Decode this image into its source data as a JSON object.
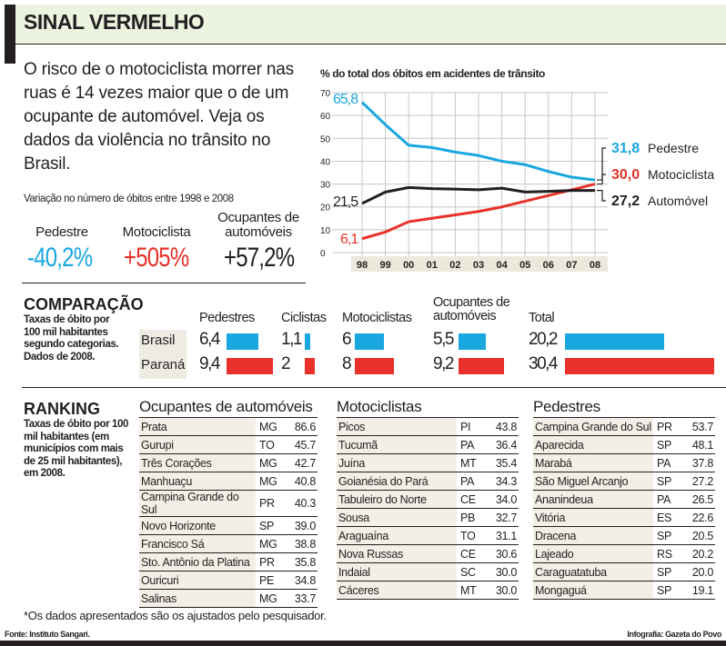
{
  "title": "SINAL VERMELHO",
  "lead": "O risco de o motociclista morrer nas ruas é 14 vezes maior que o de um ocupante de automóvel. Veja os dados da violência no trânsito no Brasil.",
  "variation": {
    "label": "Variação no número de óbitos entre 1998 e 2008",
    "items": [
      {
        "category": "Pedestre",
        "value": "-40,2%",
        "color": "#1aa7e0"
      },
      {
        "category": "Motociclista",
        "value": "+505%",
        "color": "#e8312a"
      },
      {
        "category": "Ocupantes de automóveis",
        "value": "+57,2%",
        "color": "#231f20"
      }
    ]
  },
  "chart_data": {
    "type": "line",
    "title": "% do total dos óbitos em acidentes de trânsito",
    "categories": [
      "98",
      "99",
      "00",
      "01",
      "02",
      "03",
      "04",
      "05",
      "06",
      "07",
      "08"
    ],
    "ylim": [
      0,
      70
    ],
    "yticks": [
      0,
      10,
      20,
      30,
      40,
      50,
      60,
      70
    ],
    "grid": true,
    "series": [
      {
        "name": "Pedestre",
        "color": "#1aa7e0",
        "start_label": "65,8",
        "end_label": "31,8",
        "values": [
          65.8,
          56,
          47,
          46,
          44,
          42.5,
          40,
          38.5,
          35.5,
          33,
          31.8
        ]
      },
      {
        "name": "Motociclista",
        "color": "#e8312a",
        "start_label": "6,1",
        "end_label": "30,0",
        "values": [
          6.1,
          9,
          13.5,
          15,
          16.5,
          18,
          20,
          22.5,
          25,
          27.5,
          30.0
        ]
      },
      {
        "name": "Automóvel",
        "color": "#231f20",
        "start_label": "21,5",
        "end_label": "27,2",
        "values": [
          21.5,
          26.5,
          28.5,
          28,
          27.8,
          27.5,
          28.2,
          26.5,
          26.8,
          27.2,
          27.2
        ]
      }
    ]
  },
  "comparison": {
    "title": "COMPARAÇÃO",
    "description": "Taxas de óbito por 100 mil habitantes segundo categorias. Dados de 2008.",
    "columns": [
      "Pedestres",
      "Ciclistas",
      "Motociclistas",
      "Ocupantes de automóveis",
      "Total"
    ],
    "rows": [
      {
        "label": "Brasil",
        "color": "#1aa7e0",
        "values": [
          6.4,
          1.1,
          6,
          5.5,
          20.2
        ],
        "labels": [
          "6,4",
          "1,1",
          "6",
          "5,5",
          "20,2"
        ]
      },
      {
        "label": "Paraná",
        "color": "#e8312a",
        "values": [
          9.4,
          2,
          8,
          9.2,
          30.4
        ],
        "labels": [
          "9,4",
          "2",
          "8",
          "9,2",
          "30,4"
        ]
      }
    ]
  },
  "ranking": {
    "title": "RANKING",
    "description": "Taxas de óbito por 100 mil habitantes (em municípios com mais de 25 mil habitantes), em 2008.",
    "tables": [
      {
        "title": "Ocupantes de automóveis",
        "rows": [
          [
            "Prata",
            "MG",
            "86.6"
          ],
          [
            "Gurupi",
            "TO",
            "45.7"
          ],
          [
            "Três Corações",
            "MG",
            "42.7"
          ],
          [
            "Manhuaçu",
            "MG",
            "40.8"
          ],
          [
            "Campina Grande do Sul",
            "PR",
            "40.3"
          ],
          [
            "Novo Horizonte",
            "SP",
            "39.0"
          ],
          [
            "Francisco Sá",
            "MG",
            "38.8"
          ],
          [
            "Sto. Antônio da Platina",
            "PR",
            "35.8"
          ],
          [
            "Ouricuri",
            "PE",
            "34.8"
          ],
          [
            "Salinas",
            "MG",
            "33.7"
          ]
        ]
      },
      {
        "title": "Motociclistas",
        "rows": [
          [
            "Picos",
            "PI",
            "43.8"
          ],
          [
            "Tucumã",
            "PA",
            "36.4"
          ],
          [
            "Juína",
            "MT",
            "35.4"
          ],
          [
            "Goianésia do Pará",
            "PA",
            "34.3"
          ],
          [
            "Tabuleiro do Norte",
            "CE",
            "34.0"
          ],
          [
            "Sousa",
            "PB",
            "32.7"
          ],
          [
            "Araguaína",
            "TO",
            "31.1"
          ],
          [
            "Nova Russas",
            "CE",
            "30.6"
          ],
          [
            "Indaial",
            "SC",
            "30.0"
          ],
          [
            "Cáceres",
            "MT",
            "30.0"
          ]
        ]
      },
      {
        "title": "Pedestres",
        "rows": [
          [
            "Campina Grande do Sul",
            "PR",
            "53.7"
          ],
          [
            "Aparecida",
            "SP",
            "48.1"
          ],
          [
            "Marabá",
            "PA",
            "37.8"
          ],
          [
            "São Miguel Arcanjo",
            "SP",
            "27.2"
          ],
          [
            "Ananindeua",
            "PA",
            "26.5"
          ],
          [
            "Vitória",
            "ES",
            "22.6"
          ],
          [
            "Dracena",
            "SP",
            "20.5"
          ],
          [
            "Lajeado",
            "RS",
            "20.2"
          ],
          [
            "Caraguatatuba",
            "SP",
            "20.0"
          ],
          [
            "Mongaguá",
            "SP",
            "19.1"
          ]
        ]
      }
    ]
  },
  "footnote": "*Os dados apresentados são os ajustados pelo pesquisador.",
  "source": "Fonte: Instituto Sangari.",
  "credit": "Infografia: Gazeta do Povo"
}
